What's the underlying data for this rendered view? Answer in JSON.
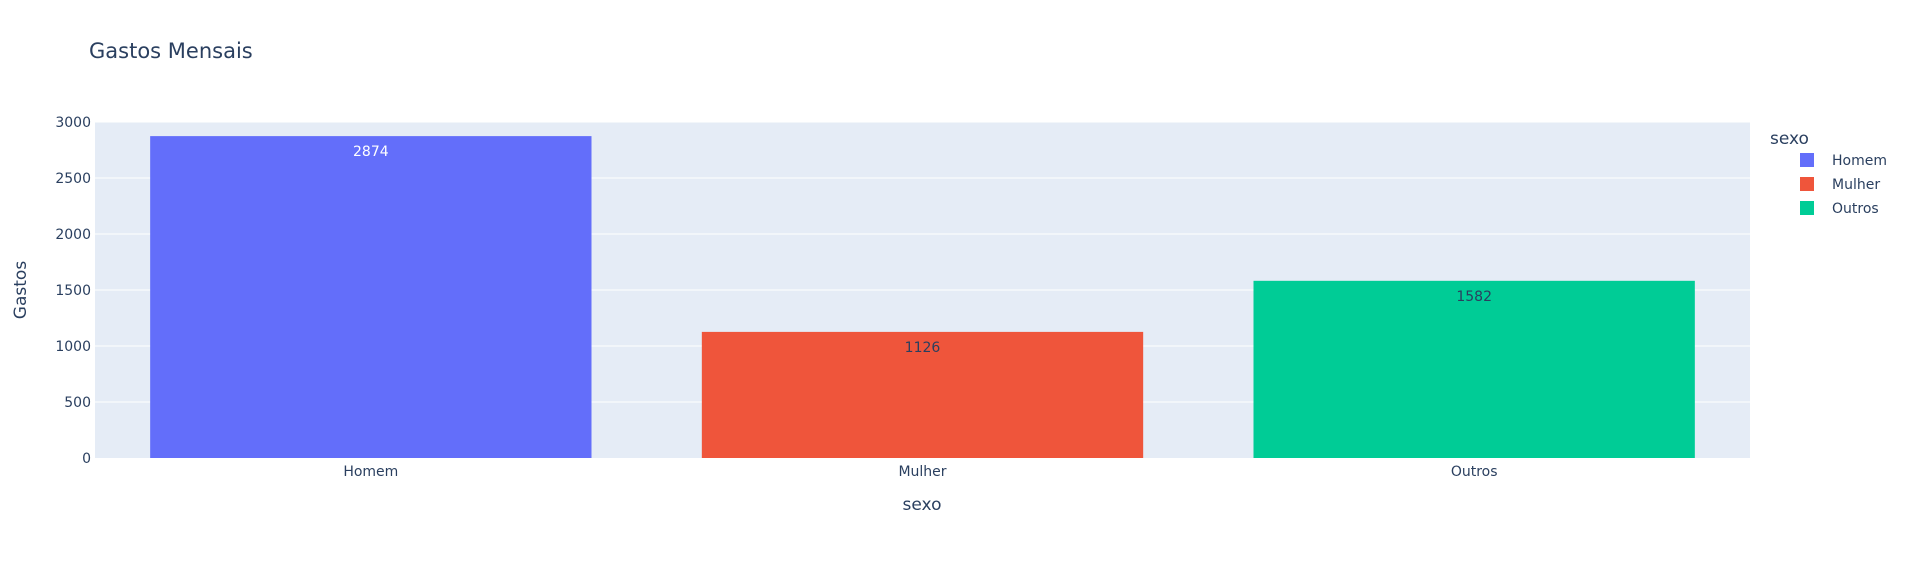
{
  "colors": {
    "plot_bg": "#e5ecf6",
    "grid": "#ffffff",
    "text": "#2a3f5f",
    "tick_text": "#2a3f5f"
  },
  "chart_data": {
    "type": "bar",
    "title": "Gastos Mensais",
    "xlabel": "sexo",
    "ylabel": "Gastos",
    "categories": [
      "Homem",
      "Mulher",
      "Outros"
    ],
    "values": [
      2874,
      1126,
      1582
    ],
    "bar_colors": [
      "#636efa",
      "#ef553b",
      "#00cc96"
    ],
    "data_label_colors": [
      "#ffffff",
      "#2a3f5f",
      "#2a3f5f"
    ],
    "ylim": [
      0,
      3000
    ],
    "yticks": [
      0,
      500,
      1000,
      1500,
      2000,
      2500,
      3000
    ],
    "grid": true,
    "legend": {
      "title": "sexo",
      "position": "top-right",
      "items": [
        {
          "label": "Homem",
          "color": "#636efa"
        },
        {
          "label": "Mulher",
          "color": "#ef553b"
        },
        {
          "label": "Outros",
          "color": "#00cc96"
        }
      ]
    }
  }
}
